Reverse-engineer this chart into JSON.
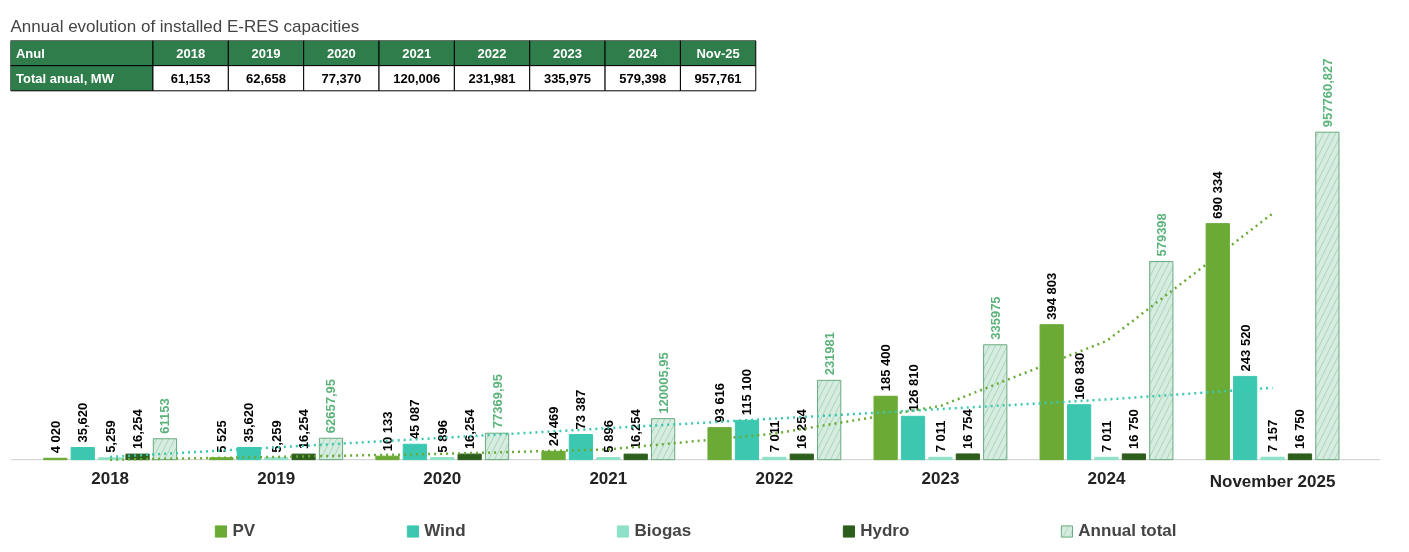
{
  "chart_data": {
    "type": "bar",
    "title": "Annual evolution of installed E-RES capacities",
    "categories": [
      "2018",
      "2019",
      "2020",
      "2021",
      "2022",
      "2023",
      "2024",
      "November 2025"
    ],
    "series": [
      {
        "name": "PV",
        "color": "#6aaa35",
        "values": [
          4020,
          5525,
          10133,
          24469,
          93616,
          185400,
          394803,
          690334
        ],
        "value_labels": [
          "4 020",
          "5 525",
          "10 133",
          "24 469",
          "93 616",
          "185 400",
          "394 803",
          "690 334"
        ]
      },
      {
        "name": "Wind",
        "color": "#3cc8b0",
        "values": [
          35620,
          35620,
          45087,
          73387,
          115100,
          126810,
          160830,
          243520
        ],
        "value_labels": [
          "35,620",
          "35,620",
          "45 087",
          "73 387",
          "115 100",
          "126 810",
          "160 830",
          "243 520"
        ]
      },
      {
        "name": "Biogas",
        "color": "#8ee0c8",
        "values": [
          5259,
          5259,
          5896,
          5896,
          7011,
          7011,
          7011,
          7157
        ],
        "value_labels": [
          "5,259",
          "5,259",
          "5 896",
          "5 896",
          "7 011",
          "7 011",
          "7 011",
          "7 157"
        ]
      },
      {
        "name": "Hydro",
        "color": "#2e5e1e",
        "values": [
          16254,
          16254,
          16254,
          16254,
          16254,
          16754,
          16750,
          16750
        ],
        "value_labels": [
          "16,254",
          "16,254",
          "16,254",
          "16,254",
          "16 254",
          "16 754",
          "16 750",
          "16 750"
        ]
      },
      {
        "name": "Annual total",
        "color": "#d6ece0",
        "values": [
          61153,
          62657.95,
          77369.95,
          120005.95,
          231981,
          335975,
          579398,
          957760.827
        ],
        "value_labels": [
          "61153",
          "62657,95",
          "77369,95",
          "120005,95",
          "231981",
          "335975",
          "579398",
          "957760,827"
        ]
      },
      {
        "type": "line",
        "color": "#6aaa35",
        "line_style": "dotted",
        "values": [
          0,
          8000,
          17000,
          30000,
          76000,
          157000,
          347000,
          720000
        ]
      },
      {
        "type": "line",
        "color": "#3cc8b0",
        "line_style": "dotted",
        "values": [
          8000,
          36000,
          64000,
          92000,
          120000,
          148000,
          176000,
          210000
        ]
      }
    ],
    "annotations": [
      "Anul",
      "2018",
      "2019",
      "2020",
      "2021",
      "2022",
      "2023",
      "2024",
      "Nov-25",
      "Total anual, MW",
      "61,153",
      "62,658",
      "77,370",
      "120,006",
      "231,981",
      "335,975",
      "579,398",
      "957,761"
    ],
    "legend": "bottom"
  }
}
